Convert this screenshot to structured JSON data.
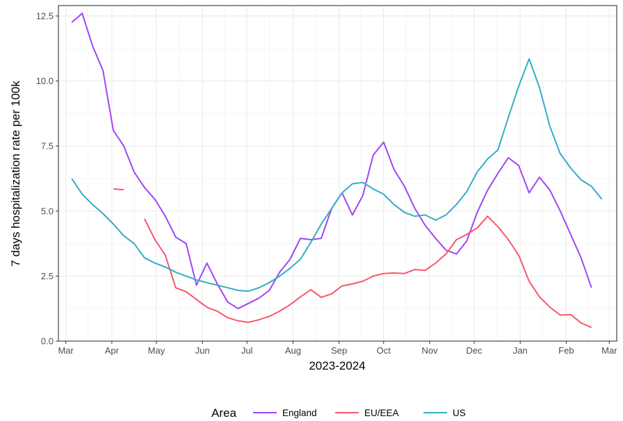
{
  "chart_data": {
    "type": "line",
    "xlabel": "2023-2024",
    "ylabel": "7 days hospitalization rate per 100k",
    "ylim": [
      0,
      12.9
    ],
    "yticks": [
      0,
      2.5,
      5,
      7.5,
      10,
      12.5
    ],
    "ytick_labels": [
      "0.0",
      "2.5",
      "5.0",
      "7.5",
      "10.0",
      "12.5"
    ],
    "xlim": [
      "2023-02-24",
      "2024-03-06"
    ],
    "xticks": [
      "2023-03-01",
      "2023-04-01",
      "2023-05-01",
      "2023-06-01",
      "2023-07-01",
      "2023-08-01",
      "2023-09-01",
      "2023-10-01",
      "2023-11-01",
      "2023-12-01",
      "2024-01-01",
      "2024-02-01",
      "2024-03-01"
    ],
    "xtick_labels": [
      "Mar",
      "Apr",
      "May",
      "Jun",
      "Jul",
      "Aug",
      "Sep",
      "Oct",
      "Nov",
      "Dec",
      "Jan",
      "Feb",
      "Mar"
    ],
    "grid": true,
    "legend": {
      "title": "Area",
      "position": "bottom"
    },
    "series": [
      {
        "name": "England",
        "color": "#9f45f5",
        "segments": [
          [
            [
              "2023-03-05",
              12.25
            ],
            [
              "2023-03-12",
              12.6
            ],
            [
              "2023-03-19",
              11.35
            ],
            [
              "2023-03-26",
              10.4
            ],
            [
              "2023-04-02",
              8.1
            ],
            [
              "2023-04-09",
              7.5
            ],
            [
              "2023-04-16",
              6.5
            ],
            [
              "2023-04-23",
              5.9
            ],
            [
              "2023-04-30",
              5.45
            ],
            [
              "2023-05-07",
              4.8
            ],
            [
              "2023-05-14",
              4.0
            ],
            [
              "2023-05-21",
              3.75
            ],
            [
              "2023-05-28",
              2.15
            ],
            [
              "2023-06-04",
              3.0
            ],
            [
              "2023-06-11",
              2.2
            ],
            [
              "2023-06-18",
              1.5
            ],
            [
              "2023-06-25",
              1.25
            ],
            [
              "2023-07-02",
              1.45
            ],
            [
              "2023-07-09",
              1.65
            ],
            [
              "2023-07-16",
              1.95
            ],
            [
              "2023-07-23",
              2.65
            ],
            [
              "2023-07-30",
              3.15
            ],
            [
              "2023-08-06",
              3.95
            ],
            [
              "2023-08-13",
              3.9
            ],
            [
              "2023-08-20",
              3.95
            ],
            [
              "2023-08-27",
              5.1
            ],
            [
              "2023-09-03",
              5.7
            ],
            [
              "2023-09-10",
              4.85
            ],
            [
              "2023-09-17",
              5.6
            ],
            [
              "2023-09-24",
              7.15
            ],
            [
              "2023-10-01",
              7.65
            ],
            [
              "2023-10-08",
              6.6
            ],
            [
              "2023-10-15",
              5.95
            ],
            [
              "2023-10-22",
              5.1
            ],
            [
              "2023-10-29",
              4.45
            ],
            [
              "2023-11-05",
              3.95
            ],
            [
              "2023-11-12",
              3.5
            ],
            [
              "2023-11-19",
              3.35
            ],
            [
              "2023-11-26",
              3.85
            ],
            [
              "2023-12-03",
              4.95
            ],
            [
              "2023-12-10",
              5.8
            ],
            [
              "2023-12-17",
              6.45
            ],
            [
              "2023-12-24",
              7.05
            ],
            [
              "2023-12-31",
              6.75
            ],
            [
              "2024-01-07",
              5.7
            ],
            [
              "2024-01-14",
              6.3
            ],
            [
              "2024-01-21",
              5.8
            ],
            [
              "2024-01-28",
              5.0
            ],
            [
              "2024-02-04",
              4.1
            ],
            [
              "2024-02-11",
              3.2
            ],
            [
              "2024-02-18",
              2.05
            ]
          ]
        ]
      },
      {
        "name": "EU/EEA",
        "color": "#f8566b",
        "segments": [
          [
            [
              "2023-04-02",
              5.85
            ],
            [
              "2023-04-09",
              5.82
            ]
          ],
          [
            [
              "2023-04-23",
              4.7
            ],
            [
              "2023-04-30",
              3.9
            ],
            [
              "2023-05-07",
              3.3
            ],
            [
              "2023-05-14",
              2.05
            ],
            [
              "2023-05-21",
              1.9
            ],
            [
              "2023-05-28",
              1.6
            ],
            [
              "2023-06-04",
              1.3
            ],
            [
              "2023-06-11",
              1.15
            ],
            [
              "2023-06-18",
              0.9
            ],
            [
              "2023-06-25",
              0.78
            ],
            [
              "2023-07-02",
              0.72
            ],
            [
              "2023-07-09",
              0.82
            ],
            [
              "2023-07-16",
              0.95
            ],
            [
              "2023-07-23",
              1.15
            ],
            [
              "2023-07-30",
              1.4
            ],
            [
              "2023-08-06",
              1.7
            ],
            [
              "2023-08-13",
              1.98
            ],
            [
              "2023-08-20",
              1.68
            ],
            [
              "2023-08-27",
              1.82
            ],
            [
              "2023-09-03",
              2.12
            ],
            [
              "2023-09-10",
              2.2
            ],
            [
              "2023-09-17",
              2.3
            ],
            [
              "2023-09-24",
              2.5
            ],
            [
              "2023-10-01",
              2.6
            ],
            [
              "2023-10-08",
              2.62
            ],
            [
              "2023-10-15",
              2.6
            ],
            [
              "2023-10-22",
              2.75
            ],
            [
              "2023-10-29",
              2.72
            ],
            [
              "2023-11-05",
              3.0
            ],
            [
              "2023-11-12",
              3.35
            ],
            [
              "2023-11-19",
              3.9
            ],
            [
              "2023-11-26",
              4.1
            ],
            [
              "2023-12-03",
              4.35
            ],
            [
              "2023-12-10",
              4.8
            ],
            [
              "2023-12-17",
              4.4
            ],
            [
              "2023-12-24",
              3.9
            ],
            [
              "2023-12-31",
              3.3
            ],
            [
              "2024-01-07",
              2.3
            ],
            [
              "2024-01-14",
              1.7
            ],
            [
              "2024-01-21",
              1.3
            ],
            [
              "2024-01-28",
              1.0
            ],
            [
              "2024-02-04",
              1.02
            ],
            [
              "2024-02-11",
              0.7
            ],
            [
              "2024-02-18",
              0.52
            ]
          ]
        ]
      },
      {
        "name": "US",
        "color": "#33acc6",
        "segments": [
          [
            [
              "2023-03-05",
              6.25
            ],
            [
              "2023-03-12",
              5.65
            ],
            [
              "2023-03-19",
              5.25
            ],
            [
              "2023-03-26",
              4.9
            ],
            [
              "2023-04-02",
              4.5
            ],
            [
              "2023-04-09",
              4.05
            ],
            [
              "2023-04-16",
              3.75
            ],
            [
              "2023-04-23",
              3.2
            ],
            [
              "2023-04-30",
              3.0
            ],
            [
              "2023-05-07",
              2.85
            ],
            [
              "2023-05-14",
              2.65
            ],
            [
              "2023-05-21",
              2.5
            ],
            [
              "2023-05-28",
              2.35
            ],
            [
              "2023-06-04",
              2.25
            ],
            [
              "2023-06-11",
              2.15
            ],
            [
              "2023-06-18",
              2.05
            ],
            [
              "2023-06-25",
              1.95
            ],
            [
              "2023-07-02",
              1.92
            ],
            [
              "2023-07-09",
              2.05
            ],
            [
              "2023-07-16",
              2.25
            ],
            [
              "2023-07-23",
              2.5
            ],
            [
              "2023-07-30",
              2.8
            ],
            [
              "2023-08-06",
              3.15
            ],
            [
              "2023-08-13",
              3.8
            ],
            [
              "2023-08-20",
              4.5
            ],
            [
              "2023-08-27",
              5.1
            ],
            [
              "2023-09-03",
              5.7
            ],
            [
              "2023-09-10",
              6.05
            ],
            [
              "2023-09-17",
              6.1
            ],
            [
              "2023-09-24",
              5.85
            ],
            [
              "2023-10-01",
              5.65
            ],
            [
              "2023-10-08",
              5.25
            ],
            [
              "2023-10-15",
              4.95
            ],
            [
              "2023-10-22",
              4.8
            ],
            [
              "2023-10-29",
              4.85
            ],
            [
              "2023-11-05",
              4.65
            ],
            [
              "2023-11-12",
              4.85
            ],
            [
              "2023-11-19",
              5.25
            ],
            [
              "2023-11-26",
              5.75
            ],
            [
              "2023-12-03",
              6.5
            ],
            [
              "2023-12-10",
              7.0
            ],
            [
              "2023-12-17",
              7.35
            ],
            [
              "2023-12-24",
              8.6
            ],
            [
              "2023-12-31",
              9.8
            ],
            [
              "2024-01-07",
              10.85
            ],
            [
              "2024-01-14",
              9.75
            ],
            [
              "2024-01-21",
              8.25
            ],
            [
              "2024-01-28",
              7.2
            ],
            [
              "2024-02-04",
              6.65
            ],
            [
              "2024-02-11",
              6.2
            ],
            [
              "2024-02-18",
              5.95
            ],
            [
              "2024-02-25",
              5.45
            ]
          ]
        ]
      }
    ]
  }
}
